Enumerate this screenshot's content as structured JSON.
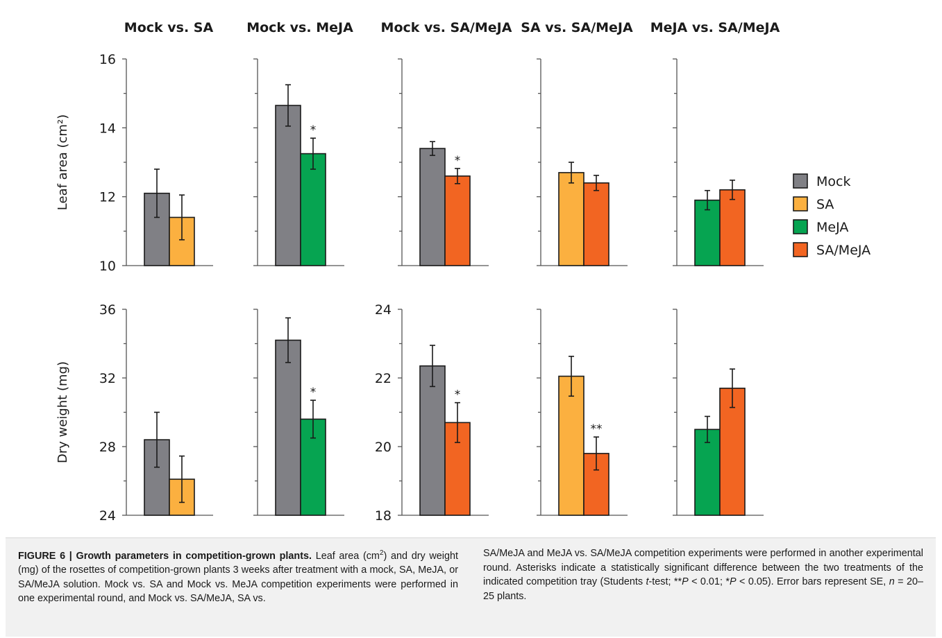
{
  "colors": {
    "Mock": "#808085",
    "SA": "#fbb040",
    "MeJA": "#06a451",
    "SA/MeJA": "#f26522"
  },
  "legend": [
    "Mock",
    "SA",
    "MeJA",
    "SA/MeJA"
  ],
  "chart_data": [
    {
      "type": "bar",
      "row": "leaf-area",
      "title": "Mock vs. SA",
      "ylabel": "Leaf area (cm²)",
      "ylim": [
        10,
        16
      ],
      "yticks": [
        10,
        12,
        14,
        16
      ],
      "show_tick_labels": true,
      "series": [
        {
          "name": "Mock",
          "value": 12.1,
          "error": 0.7
        },
        {
          "name": "SA",
          "value": 11.4,
          "error": 0.65
        }
      ]
    },
    {
      "type": "bar",
      "row": "leaf-area",
      "title": "Mock vs. MeJA",
      "ylim": [
        10,
        16
      ],
      "yticks": [
        10,
        12,
        14,
        16
      ],
      "show_tick_labels": false,
      "series": [
        {
          "name": "Mock",
          "value": 14.65,
          "error": 0.6
        },
        {
          "name": "MeJA",
          "value": 13.25,
          "error": 0.45,
          "sig": "*"
        }
      ]
    },
    {
      "type": "bar",
      "row": "leaf-area",
      "title": "Mock vs. SA/MeJA",
      "ylim": [
        10,
        16
      ],
      "yticks": [
        10,
        12,
        14,
        16
      ],
      "show_tick_labels": false,
      "series": [
        {
          "name": "Mock",
          "value": 13.4,
          "error": 0.2
        },
        {
          "name": "SA/MeJA",
          "value": 12.6,
          "error": 0.22,
          "sig": "*"
        }
      ]
    },
    {
      "type": "bar",
      "row": "leaf-area",
      "title": "SA vs. SA/MeJA",
      "ylim": [
        10,
        16
      ],
      "yticks": [
        10,
        12,
        14,
        16
      ],
      "show_tick_labels": false,
      "series": [
        {
          "name": "SA",
          "value": 12.7,
          "error": 0.3
        },
        {
          "name": "SA/MeJA",
          "value": 12.4,
          "error": 0.22
        }
      ]
    },
    {
      "type": "bar",
      "row": "leaf-area",
      "title": "MeJA vs. SA/MeJA",
      "ylim": [
        10,
        16
      ],
      "yticks": [
        10,
        12,
        14,
        16
      ],
      "show_tick_labels": false,
      "series": [
        {
          "name": "MeJA",
          "value": 11.9,
          "error": 0.28
        },
        {
          "name": "SA/MeJA",
          "value": 12.2,
          "error": 0.28
        }
      ]
    },
    {
      "type": "bar",
      "row": "dry-weight",
      "ylabel": "Dry weight (mg)",
      "ylim": [
        24,
        36
      ],
      "yticks": [
        24,
        28,
        32,
        36
      ],
      "show_tick_labels": true,
      "series": [
        {
          "name": "Mock",
          "value": 28.4,
          "error": 1.6
        },
        {
          "name": "SA",
          "value": 26.1,
          "error": 1.35
        }
      ]
    },
    {
      "type": "bar",
      "row": "dry-weight",
      "ylim": [
        24,
        36
      ],
      "yticks": [
        24,
        28,
        32,
        36
      ],
      "show_tick_labels": false,
      "series": [
        {
          "name": "Mock",
          "value": 34.2,
          "error": 1.3
        },
        {
          "name": "MeJA",
          "value": 29.6,
          "error": 1.1,
          "sig": "*"
        }
      ]
    },
    {
      "type": "bar",
      "row": "dry-weight",
      "ylim": [
        18,
        24
      ],
      "yticks": [
        18,
        20,
        22,
        24
      ],
      "show_tick_labels": true,
      "series": [
        {
          "name": "Mock",
          "value": 22.35,
          "error": 0.6
        },
        {
          "name": "SA/MeJA",
          "value": 20.7,
          "error": 0.58,
          "sig": "*"
        }
      ]
    },
    {
      "type": "bar",
      "row": "dry-weight",
      "ylim": [
        18,
        24
      ],
      "yticks": [
        18,
        20,
        22,
        24
      ],
      "show_tick_labels": false,
      "series": [
        {
          "name": "SA",
          "value": 22.05,
          "error": 0.58
        },
        {
          "name": "SA/MeJA",
          "value": 19.8,
          "error": 0.48,
          "sig": "**"
        }
      ]
    },
    {
      "type": "bar",
      "row": "dry-weight",
      "ylim": [
        18,
        24
      ],
      "yticks": [
        18,
        20,
        22,
        24
      ],
      "show_tick_labels": false,
      "series": [
        {
          "name": "MeJA",
          "value": 20.5,
          "error": 0.38
        },
        {
          "name": "SA/MeJA",
          "value": 21.7,
          "error": 0.56
        }
      ]
    }
  ],
  "caption": {
    "label": "FIGURE 6 | Growth parameters in competition-grown plants.",
    "col1_a": " Leaf area (cm",
    "col1_sup": "2",
    "col1_b": ") and dry weight (mg) of the rosettes of competition-grown plants 3 weeks after treatment with a mock, SA, MeJA, or SA/MeJA solution. Mock vs. SA and Mock vs. MeJA competition experiments were performed in one experimental round, and Mock vs. SA/MeJA, SA vs.",
    "col2_a": "SA/MeJA and MeJA vs. SA/MeJA competition experiments were performed in another experimental round. Asterisks indicate a statistically significant difference between the two treatments of the indicated competition tray (Students ",
    "col2_t": "t",
    "col2_b": "-test; **",
    "col2_p1": "P",
    "col2_c": " < 0.01; *",
    "col2_p2": "P",
    "col2_d": " < 0.05). Error bars represent SE, ",
    "col2_n": "n",
    "col2_e": " = 20–25 plants."
  }
}
